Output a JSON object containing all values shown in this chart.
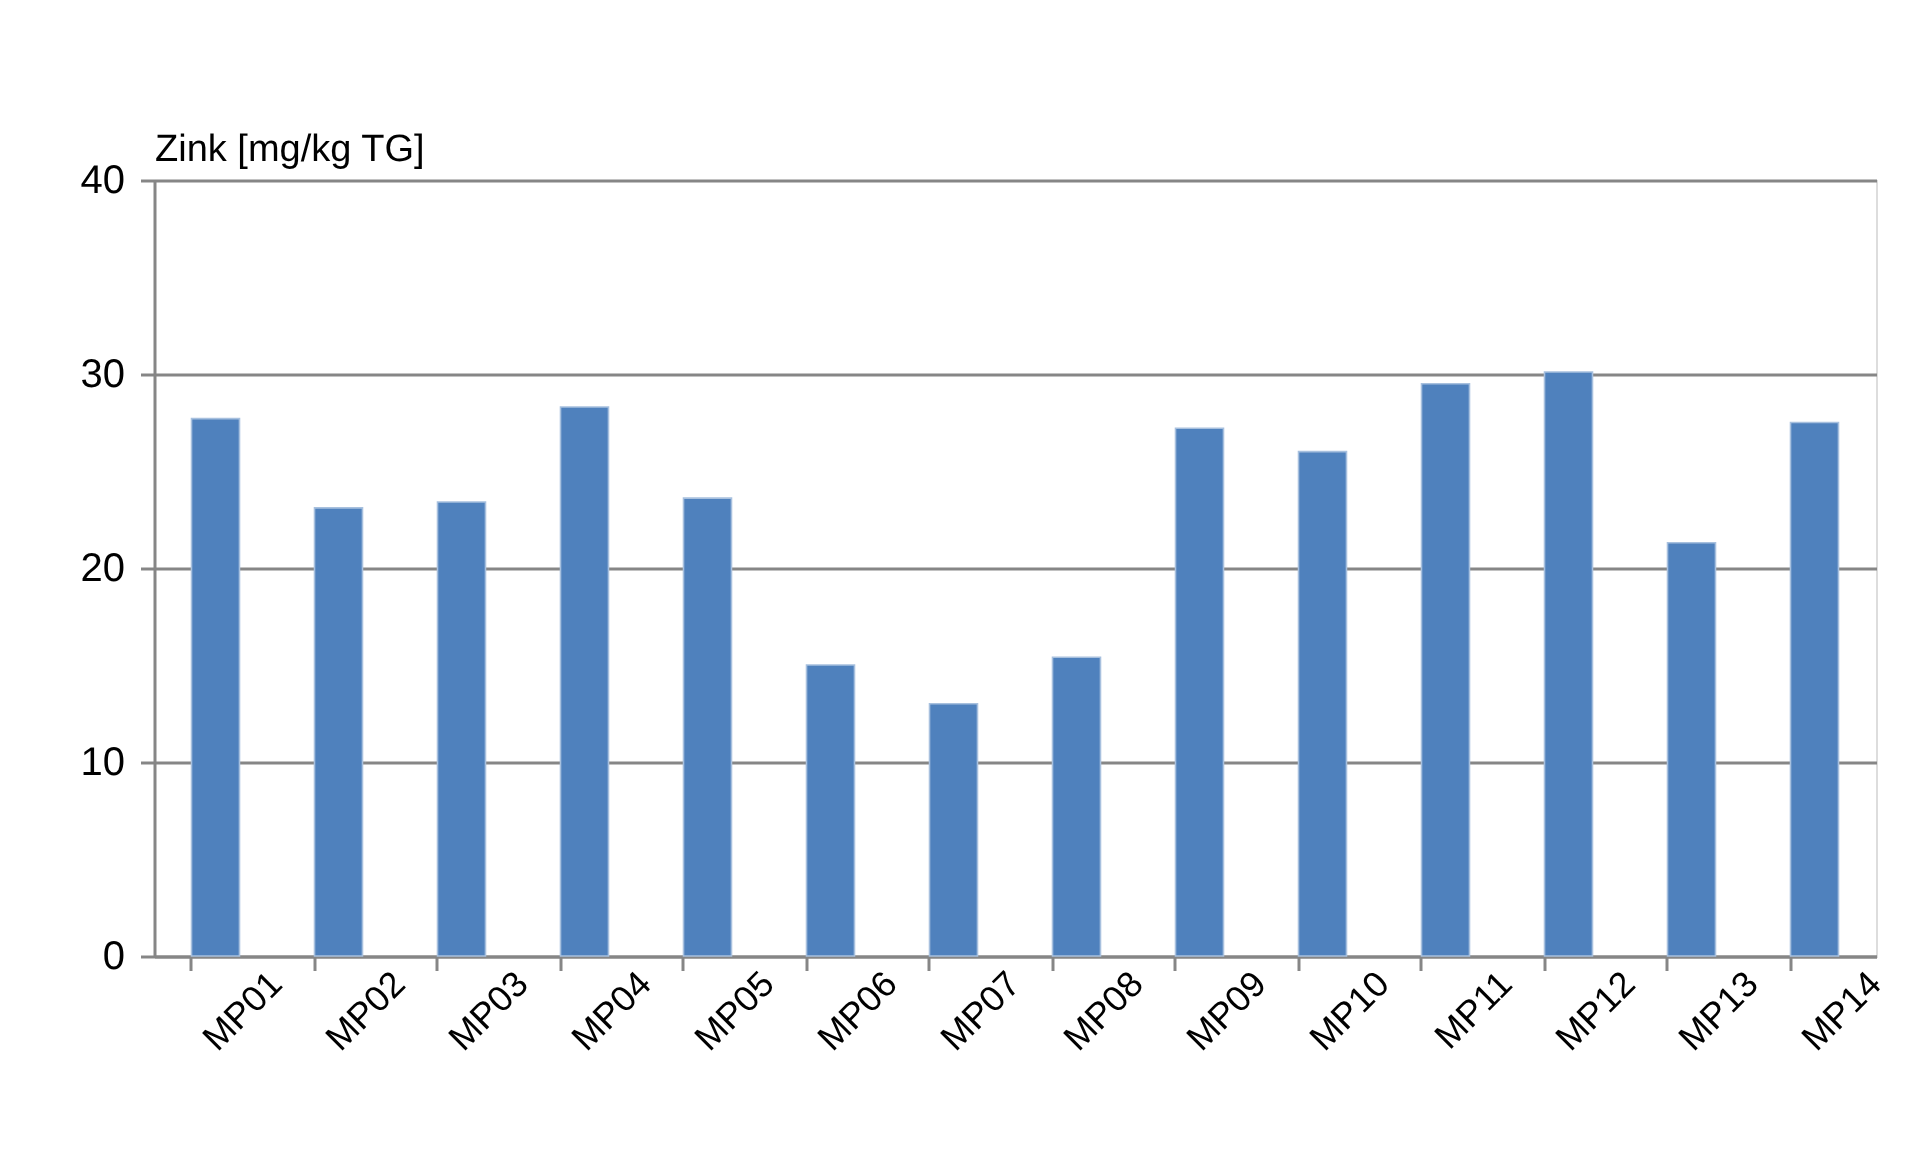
{
  "chart_data": {
    "type": "bar",
    "ylabel": "Zink [mg/kg TG]",
    "categories": [
      "MP01",
      "MP02",
      "MP03",
      "MP04",
      "MP05",
      "MP06",
      "MP07",
      "MP08",
      "MP09",
      "MP10",
      "MP11",
      "MP12",
      "MP13",
      "MP14"
    ],
    "values": [
      27.7,
      23.1,
      23.4,
      28.3,
      23.6,
      15.0,
      13.0,
      15.4,
      27.2,
      26.0,
      29.5,
      30.1,
      21.3,
      27.5
    ],
    "color": "#4f81bd",
    "ylim": [
      0,
      40
    ],
    "yticks": [
      0,
      10,
      20,
      30,
      40
    ],
    "grid": "y"
  }
}
